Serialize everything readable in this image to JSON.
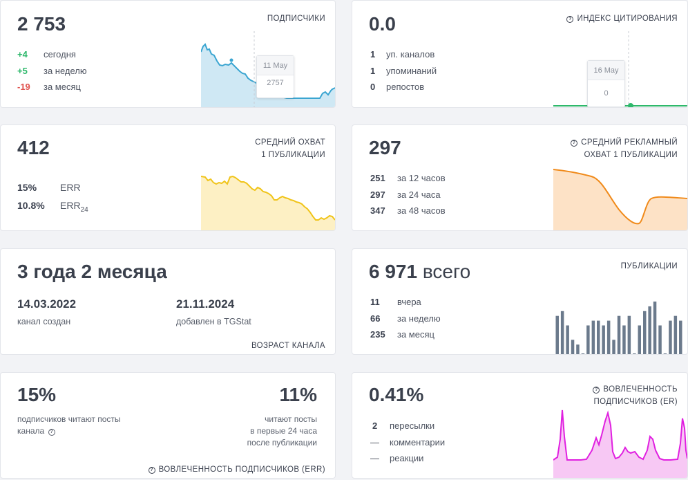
{
  "subscribers": {
    "total": "2 753",
    "title": "ПОДПИСЧИКИ",
    "rows": [
      {
        "value": "+4",
        "label": "сегодня"
      },
      {
        "value": "+5",
        "label": "за неделю"
      },
      {
        "value": "-19",
        "label": "за месяц"
      }
    ],
    "tooltip": {
      "date": "11 May",
      "value": "2757"
    },
    "colors": {
      "line": "#3aa5d1",
      "fill": "#cfe8f4",
      "positive": "#2eb86b",
      "negative": "#e0524e"
    }
  },
  "citation": {
    "total": "0.0",
    "title": "ИНДЕКС ЦИТИРОВАНИЯ",
    "icon": "question-icon",
    "rows": [
      {
        "value": "1",
        "label": "уп. каналов"
      },
      {
        "value": "1",
        "label": "упоминаний"
      },
      {
        "value": "0",
        "label": "репостов"
      }
    ],
    "tooltip": {
      "date": "16 May",
      "value": "0"
    },
    "colors": {
      "line": "#2eb86b"
    }
  },
  "reach": {
    "total": "412",
    "title_line1": "СРЕДНИЙ ОХВАТ",
    "title_line2": "1 ПУБЛИКАЦИИ",
    "rows": [
      {
        "value": "15%",
        "label": "ERR"
      },
      {
        "value": "10.8%",
        "label": "ERR",
        "sub": "24"
      }
    ],
    "colors": {
      "line": "#f0c419",
      "fill": "#fdf0c4"
    }
  },
  "ad_reach": {
    "total": "297",
    "title_line1": "СРЕДНИЙ РЕКЛАМНЫЙ",
    "title_line2": "ОХВАТ 1 ПУБЛИКАЦИИ",
    "icon": "question-icon",
    "rows": [
      {
        "value": "251",
        "label": "за 12 часов"
      },
      {
        "value": "297",
        "label": "за 24 часа"
      },
      {
        "value": "347",
        "label": "за 48 часов"
      }
    ],
    "colors": {
      "line": "#f08a1a",
      "fill": "#fde2c6"
    }
  },
  "age": {
    "title": "3 года 2 месяца",
    "created_date": "14.03.2022",
    "created_label": "канал создан",
    "added_date": "21.11.2024",
    "added_label": "добавлен в TGStat",
    "footer": "ВОЗРАСТ КАНАЛА"
  },
  "publications": {
    "total": "6 971",
    "total_suffix": "всего",
    "title": "ПУБЛИКАЦИИ",
    "rows": [
      {
        "value": "11",
        "label": "вчера"
      },
      {
        "value": "66",
        "label": "за неделю"
      },
      {
        "value": "235",
        "label": "за месяц"
      }
    ],
    "bars": [
      8,
      9,
      6,
      3,
      2,
      0,
      6,
      7,
      7,
      6,
      7,
      3,
      8,
      6,
      8,
      0,
      6,
      9,
      10,
      11,
      6,
      0,
      7,
      8,
      7
    ],
    "colors": {
      "bar": "#6b7a8c"
    }
  },
  "err": {
    "left_value": "15%",
    "left_label_line1": "подписчиков читают посты",
    "left_label_line2": "канала",
    "right_value": "11%",
    "right_label_line1": "читают посты",
    "right_label_line2": "в первые 24 часа",
    "right_label_line3": "после публикации",
    "footer": "ВОВЛЕЧЕННОСТЬ ПОДПИСЧИКОВ (ERR)",
    "icon": "question-icon"
  },
  "er": {
    "total": "0.41%",
    "title_line1": "ВОВЛЕЧЕННОСТЬ",
    "title_line2": "ПОДПИСЧИКОВ (ER)",
    "icon": "question-icon",
    "rows": [
      {
        "value": "2",
        "label": "пересылки"
      },
      {
        "value": "—",
        "label": "комментарии"
      },
      {
        "value": "—",
        "label": "реакции"
      }
    ],
    "colors": {
      "line": "#e020e0",
      "fill": "#f7c8f4"
    }
  }
}
